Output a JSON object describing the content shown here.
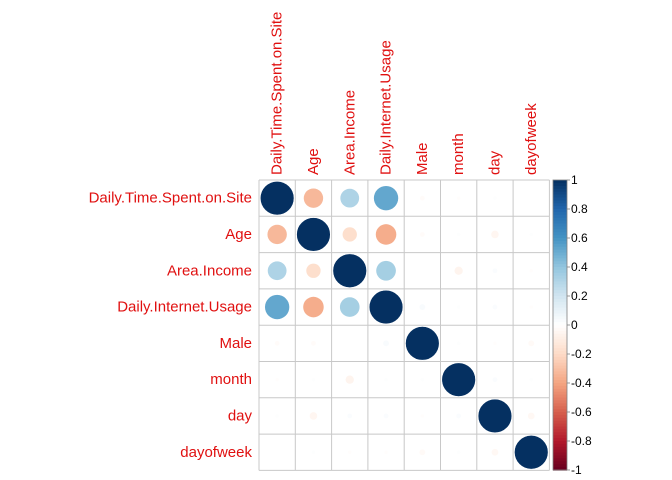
{
  "chart_data": {
    "type": "heatmap",
    "method": "circle",
    "variables": [
      "Daily.Time.Spent.on.Site",
      "Age",
      "Area.Income",
      "Daily.Internet.Usage",
      "Male",
      "month",
      "day",
      "dayofweek"
    ],
    "matrix": [
      [
        1.0,
        -0.33,
        0.31,
        0.52,
        -0.02,
        -0.01,
        0.01,
        0.0
      ],
      [
        -0.33,
        1.0,
        -0.18,
        -0.37,
        -0.02,
        0.01,
        -0.05,
        0.01
      ],
      [
        0.31,
        -0.18,
        1.0,
        0.34,
        0.0,
        -0.06,
        0.02,
        -0.01
      ],
      [
        0.52,
        -0.37,
        0.34,
        1.0,
        0.03,
        0.01,
        0.02,
        -0.01
      ],
      [
        -0.02,
        -0.02,
        0.0,
        0.03,
        1.0,
        0.01,
        -0.01,
        -0.03
      ],
      [
        -0.01,
        0.01,
        -0.06,
        0.01,
        0.01,
        1.0,
        0.02,
        0.01
      ],
      [
        0.01,
        -0.05,
        0.02,
        0.02,
        -0.01,
        0.02,
        1.0,
        -0.04
      ],
      [
        0.0,
        0.01,
        -0.01,
        -0.01,
        -0.03,
        0.01,
        -0.04,
        1.0
      ]
    ],
    "colorbar": {
      "ticks": [
        "1",
        "0.8",
        "0.6",
        "0.4",
        "0.2",
        "0",
        "-0.2",
        "-0.4",
        "-0.6",
        "-0.8",
        "-1"
      ],
      "range": [
        -1,
        1
      ]
    },
    "label_color": "#e01010",
    "palette": [
      "#67001F",
      "#B2182B",
      "#D6604D",
      "#F4A582",
      "#FDDBC7",
      "#FFFFFF",
      "#D1E5F0",
      "#92C5DE",
      "#4393C3",
      "#2166AC",
      "#053061"
    ]
  }
}
